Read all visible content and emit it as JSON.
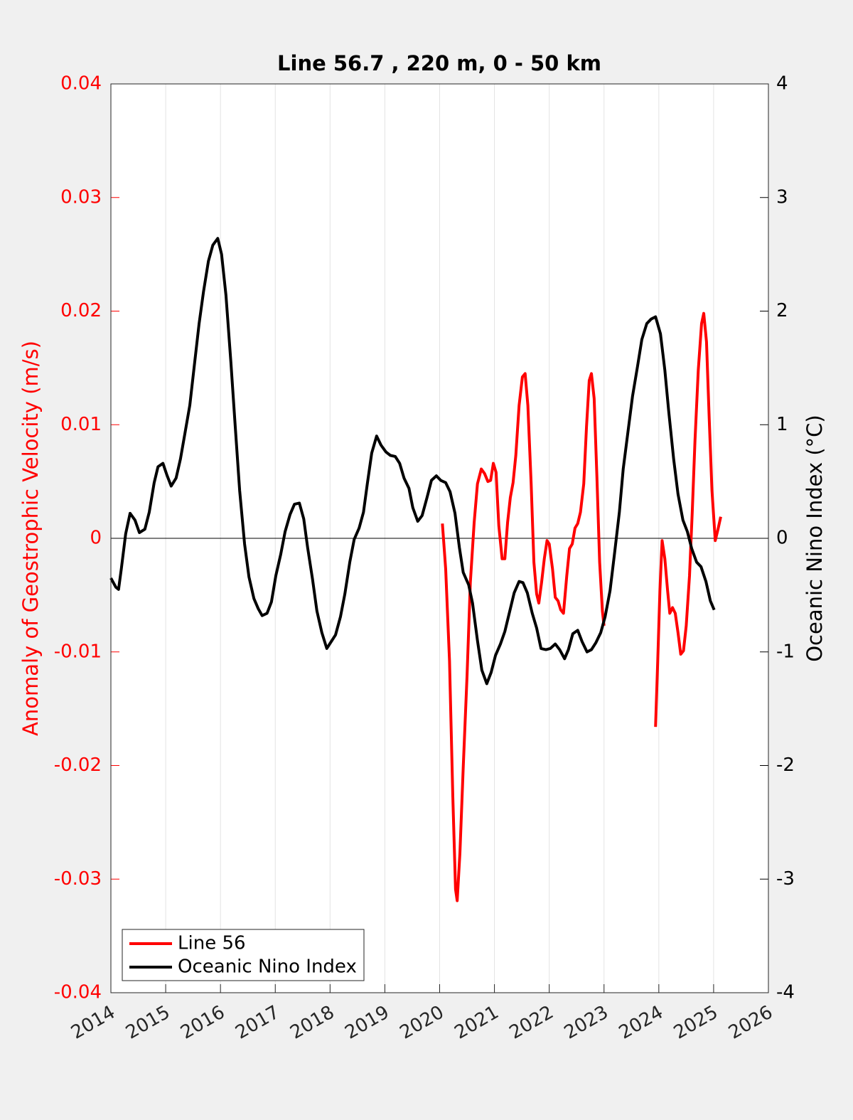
{
  "chart_data": {
    "type": "line",
    "title": "Line 56.7 , 220 m, 0 - 50 km",
    "ylabel": "Anomaly of Geostrophic Velocity (m/s)",
    "y2label": "Oceanic Nino Index (°C)",
    "ylabel_color": "#ff0000",
    "y2label_color": "#000000",
    "xlim": [
      2014,
      2026
    ],
    "xticks": [
      2014,
      2015,
      2016,
      2017,
      2018,
      2019,
      2020,
      2021,
      2022,
      2023,
      2024,
      2025,
      2026
    ],
    "ylim": [
      -0.04,
      0.04
    ],
    "yticks": [
      -0.04,
      -0.03,
      -0.02,
      -0.01,
      0,
      0.01,
      0.02,
      0.03,
      0.04
    ],
    "y2lim": [
      -4,
      4
    ],
    "y2ticks": [
      -4,
      -3,
      -2,
      -1,
      0,
      1,
      2,
      3,
      4
    ],
    "grid": "x",
    "hlines": [
      0
    ],
    "legend": "lower left",
    "series": [
      {
        "name": "Line 56",
        "color": "#ff0000",
        "axis": "y",
        "x": [
          2020.05,
          2020.11,
          2020.18,
          2020.24,
          2020.29,
          2020.32,
          2020.37,
          2020.43,
          2020.5,
          2020.56,
          2020.63,
          2020.69,
          2020.76,
          2020.82,
          2020.88,
          2020.93,
          2020.98,
          2021.03,
          2021.08,
          2021.14,
          2021.19,
          2021.24,
          2021.29,
          2021.34,
          2021.39,
          2021.45,
          2021.51,
          2021.56,
          2021.61,
          2021.67,
          2021.72,
          2021.77,
          2021.81,
          2021.86,
          2021.91,
          2021.96,
          2022.0,
          2022.06,
          2022.11,
          2022.16,
          2022.21,
          2022.26,
          2022.32,
          2022.37,
          2022.42,
          2022.47,
          2022.52,
          2022.57,
          2022.63,
          2022.68,
          2022.73,
          2022.77,
          2022.82,
          2022.87,
          2022.92,
          2022.97,
          2023.0,
          null,
          2023.94,
          2023.98,
          2024.02,
          2024.06,
          2024.11,
          2024.16,
          2024.2,
          2024.25,
          2024.3,
          2024.35,
          2024.4,
          2024.45,
          2024.5,
          2024.56,
          2024.61,
          2024.66,
          2024.72,
          2024.78,
          2024.82,
          2024.87,
          2024.92,
          2024.97,
          2025.03,
          2025.08,
          2025.13
        ],
        "values": [
          0.0013,
          -0.0027,
          -0.0108,
          -0.0227,
          -0.0309,
          -0.0319,
          -0.0277,
          -0.0202,
          -0.0121,
          -0.0039,
          0.0014,
          0.0048,
          0.0061,
          0.0057,
          0.005,
          0.0051,
          0.0066,
          0.0058,
          0.0011,
          -0.0018,
          -0.0018,
          0.0014,
          0.0036,
          0.0049,
          0.0073,
          0.0117,
          0.0142,
          0.0145,
          0.0117,
          0.0048,
          -0.0021,
          -0.0049,
          -0.0057,
          -0.0039,
          -0.0018,
          -0.0002,
          -0.0005,
          -0.0027,
          -0.0052,
          -0.0055,
          -0.0063,
          -0.0066,
          -0.0033,
          -0.0009,
          -0.0005,
          0.0009,
          0.0013,
          0.0023,
          0.0048,
          0.0098,
          0.0139,
          0.0145,
          0.0123,
          0.0054,
          -0.0021,
          -0.0064,
          -0.0077,
          null,
          -0.0166,
          -0.0108,
          -0.0046,
          -0.0002,
          -0.0018,
          -0.0046,
          -0.0066,
          -0.0061,
          -0.0066,
          -0.0083,
          -0.0102,
          -0.0099,
          -0.0077,
          -0.0033,
          0.0023,
          0.0086,
          0.0148,
          0.0189,
          0.0198,
          0.0173,
          0.0105,
          0.0042,
          -0.0002,
          0.0008,
          0.0019
        ]
      },
      {
        "name": "Oceanic Nino Index",
        "color": "#000000",
        "axis": "y2",
        "x": [
          2014.0,
          2014.09,
          2014.14,
          2014.19,
          2014.27,
          2014.35,
          2014.44,
          2014.52,
          2014.62,
          2014.7,
          2014.79,
          2014.86,
          2014.95,
          2015.02,
          2015.1,
          2015.19,
          2015.27,
          2015.35,
          2015.44,
          2015.52,
          2015.61,
          2015.69,
          2015.78,
          2015.86,
          2015.95,
          2016.02,
          2016.1,
          2016.19,
          2016.27,
          2016.35,
          2016.44,
          2016.52,
          2016.61,
          2016.69,
          2016.76,
          2016.85,
          2016.93,
          2017.01,
          2017.1,
          2017.18,
          2017.27,
          2017.35,
          2017.44,
          2017.52,
          2017.59,
          2017.68,
          2017.76,
          2017.85,
          2017.94,
          2018.02,
          2018.1,
          2018.19,
          2018.27,
          2018.36,
          2018.44,
          2018.53,
          2018.61,
          2018.68,
          2018.76,
          2018.85,
          2018.93,
          2019.02,
          2019.1,
          2019.19,
          2019.27,
          2019.35,
          2019.44,
          2019.51,
          2019.6,
          2019.68,
          2019.77,
          2019.85,
          2019.94,
          2020.02,
          2020.11,
          2020.19,
          2020.28,
          2020.36,
          2020.43,
          2020.53,
          2020.6,
          2020.69,
          2020.77,
          2020.86,
          2020.94,
          2021.02,
          2021.11,
          2021.19,
          2021.28,
          2021.36,
          2021.45,
          2021.52,
          2021.6,
          2021.69,
          2021.77,
          2021.85,
          2021.94,
          2022.02,
          2022.11,
          2022.19,
          2022.28,
          2022.35,
          2022.43,
          2022.52,
          2022.6,
          2022.69,
          2022.77,
          2022.85,
          2022.94,
          2023.02,
          2023.11,
          2023.19,
          2023.28,
          2023.35,
          2023.44,
          2023.52,
          2023.61,
          2023.69,
          2023.78,
          2023.86,
          2023.94,
          2024.03,
          2024.11,
          2024.18,
          2024.27,
          2024.35,
          2024.44,
          2024.52,
          2024.6,
          2024.69,
          2024.77,
          2024.86,
          2024.94,
          2025.01
        ],
        "values": [
          -0.35,
          -0.43,
          -0.45,
          -0.27,
          0.04,
          0.22,
          0.16,
          0.05,
          0.08,
          0.23,
          0.49,
          0.63,
          0.66,
          0.56,
          0.46,
          0.53,
          0.7,
          0.92,
          1.17,
          1.51,
          1.89,
          2.17,
          2.44,
          2.58,
          2.64,
          2.5,
          2.14,
          1.55,
          0.98,
          0.42,
          -0.05,
          -0.34,
          -0.53,
          -0.62,
          -0.68,
          -0.66,
          -0.56,
          -0.33,
          -0.14,
          0.06,
          0.21,
          0.3,
          0.31,
          0.17,
          -0.08,
          -0.36,
          -0.64,
          -0.83,
          -0.97,
          -0.91,
          -0.85,
          -0.69,
          -0.49,
          -0.21,
          -0.01,
          0.09,
          0.23,
          0.48,
          0.75,
          0.9,
          0.82,
          0.76,
          0.73,
          0.72,
          0.66,
          0.53,
          0.44,
          0.27,
          0.15,
          0.2,
          0.36,
          0.51,
          0.55,
          0.51,
          0.49,
          0.41,
          0.22,
          -0.08,
          -0.3,
          -0.41,
          -0.57,
          -0.9,
          -1.16,
          -1.28,
          -1.18,
          -1.03,
          -0.93,
          -0.82,
          -0.64,
          -0.48,
          -0.38,
          -0.39,
          -0.48,
          -0.66,
          -0.79,
          -0.97,
          -0.98,
          -0.97,
          -0.93,
          -0.98,
          -1.06,
          -0.98,
          -0.84,
          -0.81,
          -0.91,
          -1.0,
          -0.98,
          -0.92,
          -0.83,
          -0.69,
          -0.46,
          -0.14,
          0.23,
          0.61,
          0.95,
          1.25,
          1.51,
          1.75,
          1.89,
          1.93,
          1.95,
          1.8,
          1.48,
          1.12,
          0.7,
          0.39,
          0.16,
          0.06,
          -0.09,
          -0.21,
          -0.25,
          -0.38,
          -0.55,
          -0.63
        ]
      }
    ]
  }
}
